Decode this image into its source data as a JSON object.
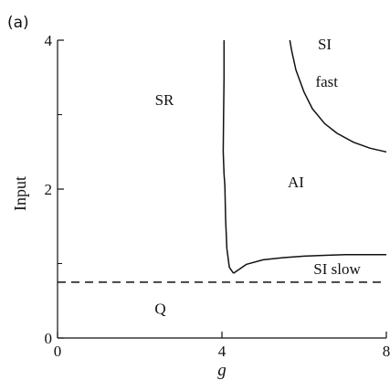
{
  "chart_data": {
    "type": "line",
    "panel_label": "(a)",
    "xlabel": "g",
    "ylabel": "Input",
    "xlim": [
      0,
      8
    ],
    "ylim": [
      0,
      4
    ],
    "xticks": [
      0,
      4,
      8
    ],
    "yticks": [
      0,
      2,
      4
    ],
    "xticks_labels": [
      "0",
      "4",
      "8"
    ],
    "yticks_labels": [
      "0",
      "2",
      "4"
    ],
    "grid": false,
    "legend": "none",
    "curves": [
      {
        "role": "boundary-sr-ai",
        "style": "solid",
        "points": [
          [
            4.05,
            4.0
          ],
          [
            4.05,
            3.5
          ],
          [
            4.04,
            3.0
          ],
          [
            4.03,
            2.5
          ],
          [
            4.05,
            2.2
          ],
          [
            4.07,
            2.05
          ],
          [
            4.09,
            1.6
          ],
          [
            4.12,
            1.2
          ],
          [
            4.18,
            0.95
          ],
          [
            4.28,
            0.87
          ]
        ]
      },
      {
        "role": "boundary-ai-sislow",
        "style": "solid",
        "points": [
          [
            4.28,
            0.87
          ],
          [
            4.6,
            0.99
          ],
          [
            5.0,
            1.05
          ],
          [
            5.5,
            1.08
          ],
          [
            6.0,
            1.1
          ],
          [
            6.5,
            1.11
          ],
          [
            7.0,
            1.12
          ],
          [
            7.5,
            1.12
          ],
          [
            8.0,
            1.12
          ]
        ]
      },
      {
        "role": "boundary-ai-sifast",
        "style": "solid",
        "points": [
          [
            5.65,
            4.0
          ],
          [
            5.7,
            3.85
          ],
          [
            5.8,
            3.6
          ],
          [
            6.0,
            3.3
          ],
          [
            6.2,
            3.08
          ],
          [
            6.5,
            2.88
          ],
          [
            6.8,
            2.75
          ],
          [
            7.2,
            2.63
          ],
          [
            7.6,
            2.55
          ],
          [
            8.0,
            2.5
          ]
        ]
      },
      {
        "role": "threshold-q",
        "style": "dashed",
        "points": [
          [
            0,
            0.75
          ],
          [
            8,
            0.75
          ]
        ]
      }
    ],
    "annotations": [
      {
        "id": "sr",
        "text": "SR",
        "x": 2.6,
        "y": 3.2
      },
      {
        "id": "ai",
        "text": "AI",
        "x": 5.8,
        "y": 2.1
      },
      {
        "id": "si",
        "text": "SI",
        "x": 6.5,
        "y": 3.95
      },
      {
        "id": "fast",
        "text": "fast",
        "x": 6.55,
        "y": 3.45
      },
      {
        "id": "sislow",
        "text": "SI slow",
        "x": 6.8,
        "y": 0.93
      },
      {
        "id": "q",
        "text": "Q",
        "x": 2.5,
        "y": 0.4
      }
    ]
  }
}
